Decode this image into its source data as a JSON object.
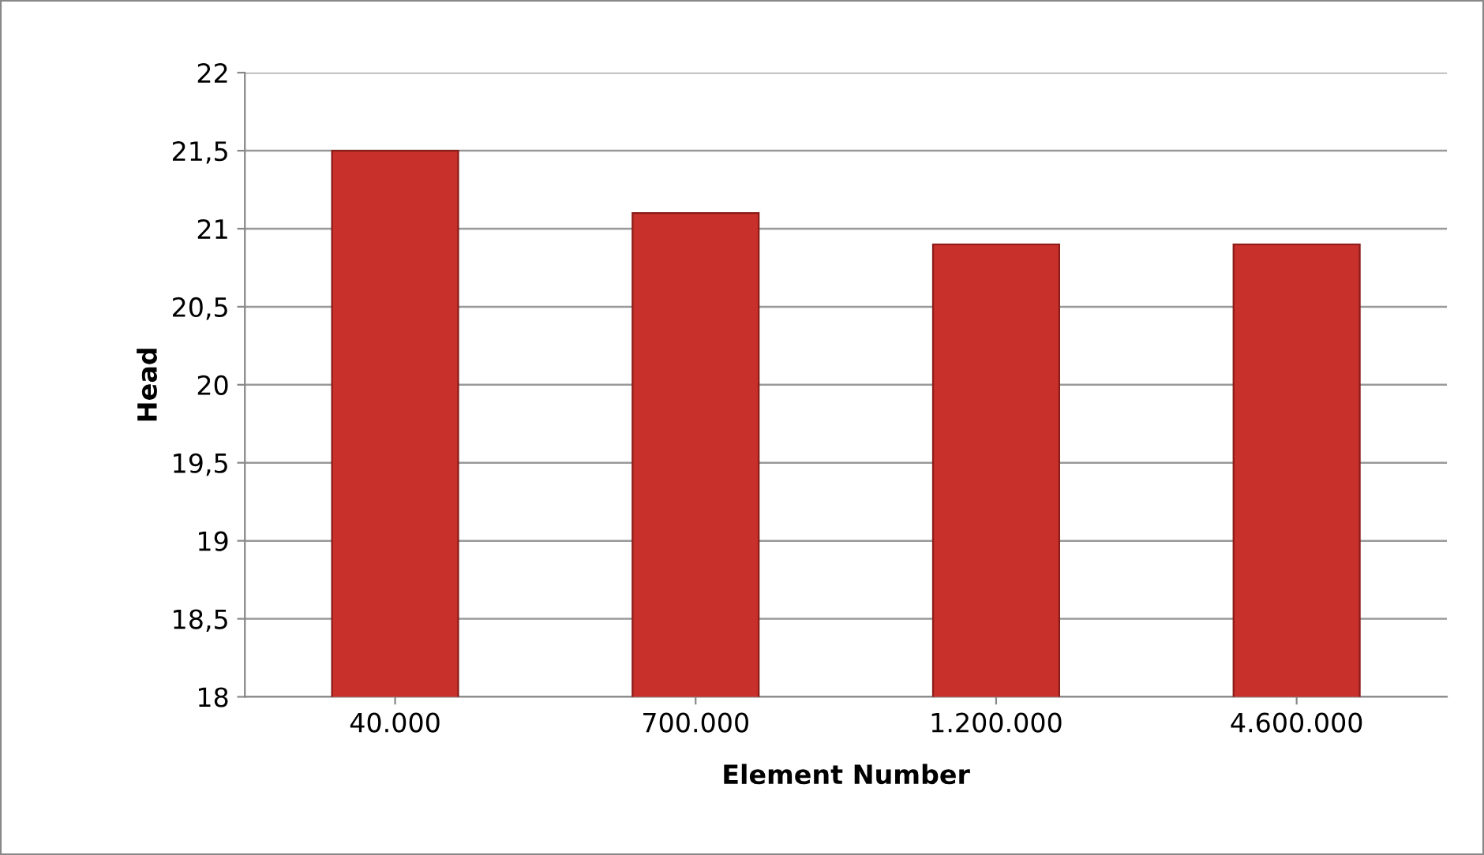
{
  "chart_data": {
    "type": "bar",
    "xlabel": "Element Number",
    "ylabel": "Head",
    "categories": [
      "40.000",
      "700.000",
      "1.200.000",
      "4.600.000"
    ],
    "values": [
      21.5,
      21.1,
      20.9,
      20.9
    ],
    "color": "#c8302c",
    "ylim": [
      18,
      22
    ],
    "yticks": [
      18,
      {
        "value": 18.5,
        "label": "18,5"
      },
      19,
      {
        "value": 19.5,
        "label": "19,5"
      },
      20,
      {
        "value": 20.5,
        "label": "20,5"
      },
      21,
      {
        "value": 21.5,
        "label": "21,5"
      },
      22
    ],
    "grid": "y",
    "legend": false
  }
}
